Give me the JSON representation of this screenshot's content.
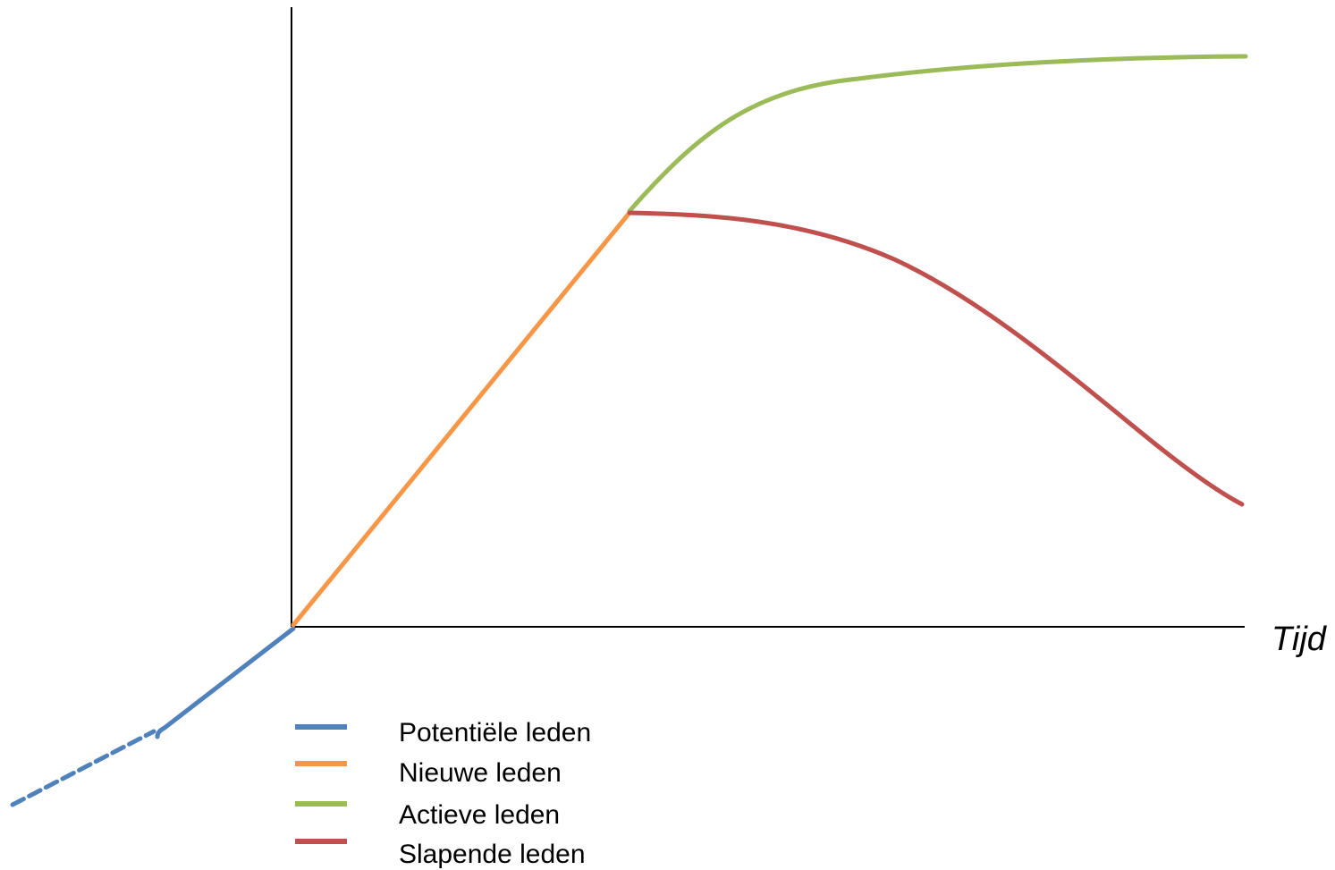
{
  "diagram": {
    "x_axis_label": "Tijd",
    "legend": [
      {
        "label": "Potentiële leden",
        "color": "#4f81bd"
      },
      {
        "label": "Nieuwe leden",
        "color": "#f79646"
      },
      {
        "label": "Actieve leden",
        "color": "#9bbb59"
      },
      {
        "label": "Slapende leden",
        "color": "#c0504d"
      }
    ],
    "curves": {
      "potential": {
        "color": "#4f81bd",
        "style": "solid then dashed",
        "segment": "before origin"
      },
      "new": {
        "color": "#f79646",
        "style": "solid",
        "segment": "origin to branch point"
      },
      "active": {
        "color": "#9bbb59",
        "style": "solid",
        "shape": "rises and levels off"
      },
      "dormant": {
        "color": "#c0504d",
        "style": "solid",
        "shape": "stays flat then declines"
      }
    }
  }
}
